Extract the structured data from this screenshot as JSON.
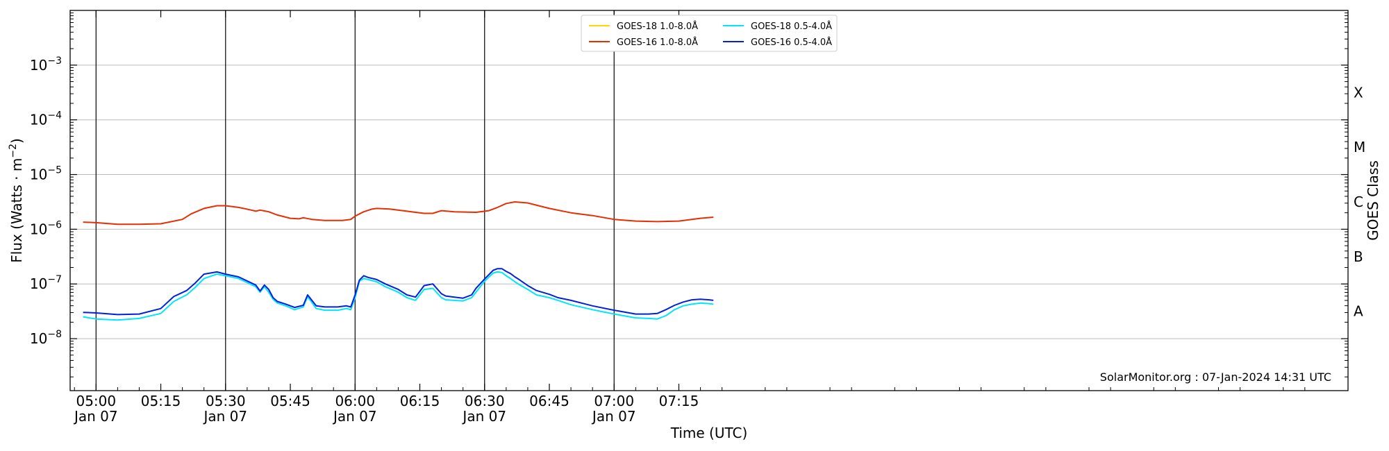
{
  "chart_data": {
    "type": "line",
    "xlabel": "Time (UTC)",
    "ylabel_main": "Flux (Watts · m",
    "ylabel_sup": "−2",
    "ylabel_close": ")",
    "right_label": "GOES Class",
    "credit": "SolarMonitor.org : 07-Jan-2024 14:31 UTC",
    "x_range_minutes": [
      -6,
      290
    ],
    "ylim_log10": [
      -8.95,
      -2.0
    ],
    "y_scale": "log",
    "grid": "horizontal at decades",
    "legend_position": "top-center",
    "y_ticks": [
      {
        "base": "10",
        "exp": "−3",
        "value": 0.001
      },
      {
        "base": "10",
        "exp": "−4",
        "value": 0.0001
      },
      {
        "base": "10",
        "exp": "−5",
        "value": 1e-05
      },
      {
        "base": "10",
        "exp": "−6",
        "value": 1e-06
      },
      {
        "base": "10",
        "exp": "−7",
        "value": 1e-07
      },
      {
        "base": "10",
        "exp": "−8",
        "value": 1e-08
      }
    ],
    "x_ticks": [
      {
        "minute": 0,
        "label": "05:00",
        "sublabel": "Jan 07"
      },
      {
        "minute": 15,
        "label": "05:15",
        "sublabel": ""
      },
      {
        "minute": 30,
        "label": "05:30",
        "sublabel": "Jan 07"
      },
      {
        "minute": 45,
        "label": "05:45",
        "sublabel": ""
      },
      {
        "minute": 60,
        "label": "06:00",
        "sublabel": "Jan 07"
      },
      {
        "minute": 75,
        "label": "06:15",
        "sublabel": ""
      },
      {
        "minute": 90,
        "label": "06:30",
        "sublabel": "Jan 07"
      },
      {
        "minute": 105,
        "label": "06:45",
        "sublabel": ""
      },
      {
        "minute": 120,
        "label": "07:00",
        "sublabel": "Jan 07"
      },
      {
        "minute": 135,
        "label": "07:15",
        "sublabel": ""
      }
    ],
    "vlines_minutes": [
      0,
      30,
      60,
      90,
      120
    ],
    "goes_classes": [
      {
        "label": "X",
        "log10": -3.5
      },
      {
        "label": "M",
        "log10": -4.5
      },
      {
        "label": "C",
        "log10": -5.5
      },
      {
        "label": "B",
        "log10": -6.5
      },
      {
        "label": "A",
        "log10": -7.5
      }
    ],
    "series": [
      {
        "name": "GOES-18 1.0-8.0Å",
        "color": "#ffd700",
        "x": [],
        "log10_flux": []
      },
      {
        "name": "GOES-16 1.0-8.0Å",
        "color": "#e62e00",
        "x": [
          -3,
          0,
          5,
          10,
          15,
          20,
          22,
          25,
          28,
          30,
          33,
          36,
          37,
          38,
          40,
          42,
          45,
          47,
          48,
          50,
          53,
          57,
          59,
          60,
          62,
          64,
          65,
          68,
          72,
          74,
          76,
          78,
          80,
          83,
          88,
          91,
          93,
          95,
          97,
          100,
          105,
          110,
          115,
          120,
          125,
          130,
          135,
          140,
          143
        ],
        "log10_flux": [
          -5.87,
          -5.88,
          -5.91,
          -5.91,
          -5.9,
          -5.82,
          -5.72,
          -5.62,
          -5.57,
          -5.57,
          -5.6,
          -5.65,
          -5.67,
          -5.65,
          -5.68,
          -5.74,
          -5.8,
          -5.81,
          -5.79,
          -5.82,
          -5.84,
          -5.84,
          -5.82,
          -5.76,
          -5.68,
          -5.63,
          -5.62,
          -5.63,
          -5.67,
          -5.69,
          -5.71,
          -5.71,
          -5.66,
          -5.68,
          -5.69,
          -5.66,
          -5.6,
          -5.53,
          -5.5,
          -5.52,
          -5.62,
          -5.7,
          -5.75,
          -5.82,
          -5.85,
          -5.86,
          -5.85,
          -5.8,
          -5.78
        ]
      },
      {
        "name": "GOES-18 0.5-4.0Å",
        "color": "#00e5ff",
        "x": [
          -3,
          0,
          5,
          10,
          15,
          18,
          21,
          23,
          25,
          28,
          30,
          33,
          37,
          38,
          39,
          40,
          41,
          42,
          44,
          46,
          48,
          49,
          51,
          53,
          56,
          58,
          59,
          60,
          61,
          62,
          63,
          65,
          67,
          70,
          72,
          74,
          76,
          78,
          80,
          81,
          83,
          85,
          87,
          88,
          90,
          92,
          93,
          94,
          95,
          96,
          97,
          98,
          100,
          102,
          105,
          107,
          110,
          115,
          120,
          125,
          128,
          130,
          132,
          134,
          136,
          138,
          140,
          142,
          143
        ],
        "log10_flux": [
          -7.6,
          -7.64,
          -7.66,
          -7.63,
          -7.54,
          -7.32,
          -7.2,
          -7.06,
          -6.9,
          -6.82,
          -6.85,
          -6.9,
          -7.05,
          -7.15,
          -7.05,
          -7.15,
          -7.28,
          -7.35,
          -7.4,
          -7.47,
          -7.42,
          -7.23,
          -7.45,
          -7.48,
          -7.48,
          -7.45,
          -7.47,
          -7.25,
          -6.95,
          -6.9,
          -6.92,
          -6.96,
          -7.05,
          -7.15,
          -7.25,
          -7.3,
          -7.1,
          -7.08,
          -7.25,
          -7.29,
          -7.3,
          -7.31,
          -7.25,
          -7.15,
          -6.95,
          -6.8,
          -6.78,
          -6.79,
          -6.85,
          -6.9,
          -6.96,
          -7.01,
          -7.1,
          -7.2,
          -7.25,
          -7.3,
          -7.38,
          -7.47,
          -7.55,
          -7.62,
          -7.63,
          -7.64,
          -7.58,
          -7.47,
          -7.4,
          -7.37,
          -7.35,
          -7.36,
          -7.37
        ]
      },
      {
        "name": "GOES-16 0.5-4.0Å",
        "color": "#0020dd",
        "x": [
          -3,
          0,
          5,
          10,
          15,
          18,
          21,
          23,
          25,
          28,
          30,
          33,
          37,
          38,
          39,
          40,
          41,
          42,
          44,
          46,
          48,
          49,
          51,
          53,
          56,
          58,
          59,
          60,
          61,
          62,
          63,
          65,
          67,
          70,
          72,
          74,
          76,
          78,
          80,
          81,
          83,
          85,
          87,
          88,
          90,
          92,
          93,
          94,
          95,
          96,
          97,
          98,
          100,
          102,
          105,
          107,
          110,
          115,
          120,
          125,
          128,
          130,
          132,
          134,
          136,
          138,
          140,
          142,
          143
        ],
        "log10_flux": [
          -7.52,
          -7.53,
          -7.56,
          -7.55,
          -7.45,
          -7.23,
          -7.12,
          -6.98,
          -6.82,
          -6.78,
          -6.82,
          -6.87,
          -7.02,
          -7.13,
          -7.02,
          -7.1,
          -7.25,
          -7.32,
          -7.37,
          -7.43,
          -7.39,
          -7.2,
          -7.4,
          -7.42,
          -7.42,
          -7.4,
          -7.42,
          -7.2,
          -6.93,
          -6.85,
          -6.88,
          -6.92,
          -7.0,
          -7.1,
          -7.2,
          -7.24,
          -7.03,
          -7.0,
          -7.18,
          -7.22,
          -7.24,
          -7.26,
          -7.2,
          -7.08,
          -6.91,
          -6.75,
          -6.72,
          -6.72,
          -6.77,
          -6.81,
          -6.87,
          -6.92,
          -7.03,
          -7.12,
          -7.19,
          -7.25,
          -7.3,
          -7.4,
          -7.48,
          -7.55,
          -7.55,
          -7.54,
          -7.47,
          -7.39,
          -7.33,
          -7.29,
          -7.28,
          -7.29,
          -7.3
        ]
      }
    ]
  }
}
